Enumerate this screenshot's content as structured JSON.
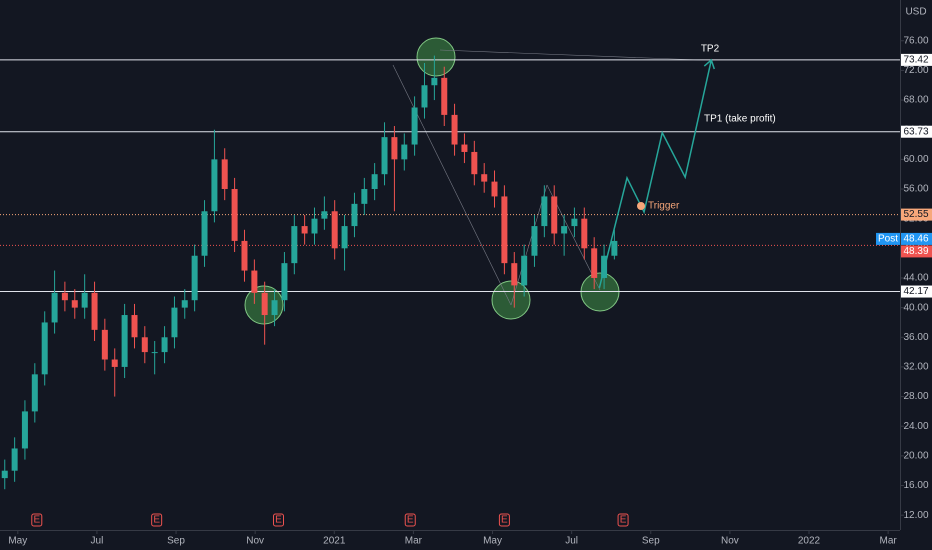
{
  "chart_data": {
    "type": "candlestick",
    "currency": "USD",
    "x": [
      -0.33,
      -0.08,
      0.18,
      0.43,
      0.68,
      0.93,
      1.19,
      1.44,
      1.69,
      1.94,
      2.2,
      2.45,
      2.7,
      2.95,
      3.21,
      3.46,
      3.71,
      3.96,
      4.22,
      4.47,
      4.72,
      4.97,
      5.23,
      5.48,
      5.73,
      5.98,
      6.24,
      6.49,
      6.74,
      6.99,
      7.25,
      7.5,
      7.75,
      8.01,
      8.26,
      8.51,
      8.76,
      9.02,
      9.27,
      9.52,
      9.77,
      10.03,
      10.28,
      10.53,
      10.78,
      11.04,
      11.29,
      11.54,
      11.79,
      12.05,
      12.3,
      12.55,
      12.8,
      13.06,
      13.31,
      13.56,
      13.81,
      14.07,
      14.32,
      14.57,
      14.82,
      15.08
    ],
    "open": [
      17,
      18,
      21,
      26,
      31,
      38,
      42,
      41,
      40,
      42,
      37,
      33,
      32,
      39,
      36,
      34,
      34,
      36,
      40,
      41,
      47,
      53,
      60,
      56,
      49,
      45,
      42,
      39,
      41,
      46,
      51,
      50,
      52,
      53,
      48,
      51,
      54,
      56,
      58,
      63,
      60,
      62,
      67,
      70,
      71,
      66,
      62,
      61,
      58,
      57,
      55,
      46,
      43,
      47,
      51,
      55,
      50,
      51,
      52,
      48,
      44,
      47
    ],
    "high": [
      19.5,
      22.5,
      27.5,
      32.5,
      39.5,
      45,
      43.5,
      42.5,
      44.5,
      43.5,
      38.5,
      34.5,
      40.5,
      40.5,
      37.5,
      35.5,
      37.5,
      41.5,
      42.5,
      48.5,
      54.5,
      64,
      61.5,
      57.5,
      50.5,
      46.5,
      43.5,
      42.5,
      47.5,
      52.5,
      52.5,
      53.5,
      55,
      54.5,
      52.5,
      55.5,
      57.5,
      59.5,
      65,
      64.5,
      63.5,
      68.5,
      73,
      74,
      72.5,
      67.5,
      63.5,
      62.5,
      59.5,
      58.5,
      56.5,
      47.5,
      48.5,
      52.5,
      56.5,
      56.5,
      52.5,
      53.5,
      53.5,
      49.5,
      48.5,
      50.5
    ],
    "low": [
      15.5,
      16.5,
      19.5,
      24.5,
      29.5,
      36.5,
      39.5,
      38.5,
      38.5,
      35.5,
      31.5,
      28,
      30.5,
      34.5,
      32.5,
      31,
      32.5,
      34.5,
      38.5,
      39.5,
      45.5,
      51.5,
      54.5,
      47.5,
      43.5,
      40.5,
      35,
      37.5,
      39.5,
      44.5,
      48.5,
      48.5,
      50.5,
      46.5,
      45,
      49.5,
      52.5,
      54.5,
      56.5,
      53,
      58.5,
      60.5,
      65.5,
      68,
      64.5,
      60.5,
      59.5,
      56.5,
      55.5,
      53.5,
      44.5,
      40,
      41.5,
      45.5,
      49.5,
      48.5,
      47,
      49.5,
      46.5,
      42.5,
      42.5,
      46.5
    ],
    "close": [
      18,
      21,
      26,
      31,
      38,
      42,
      41,
      40,
      42,
      37,
      33,
      32,
      39,
      36,
      34,
      34,
      36,
      40,
      41,
      47,
      53,
      60,
      56,
      49,
      45,
      42,
      39,
      41,
      46,
      51,
      50,
      52,
      53,
      48,
      51,
      54,
      56,
      58,
      63,
      60,
      62,
      67,
      70,
      71,
      66,
      62,
      61,
      58,
      57,
      55,
      46,
      43,
      47,
      51,
      55,
      50,
      51,
      52,
      48,
      44,
      47,
      49
    ],
    "up_color": "#26a69a",
    "down_color": "#ef5350",
    "xlim": [
      -0.45,
      22.3
    ],
    "xticks": [
      {
        "value": 0,
        "label": "May"
      },
      {
        "value": 2,
        "label": "Jul"
      },
      {
        "value": 4,
        "label": "Sep"
      },
      {
        "value": 6,
        "label": "Nov"
      },
      {
        "value": 8,
        "label": "2021"
      },
      {
        "value": 10,
        "label": "Mar"
      },
      {
        "value": 12,
        "label": "May"
      },
      {
        "value": 14,
        "label": "Jul"
      },
      {
        "value": 16,
        "label": "Sep"
      },
      {
        "value": 18,
        "label": "Nov"
      },
      {
        "value": 20,
        "label": "2022"
      },
      {
        "value": 22,
        "label": "Mar"
      }
    ],
    "ylim": [
      10,
      81.5
    ],
    "yticks": [
      {
        "value": 12,
        "label": "12.00"
      },
      {
        "value": 16,
        "label": "16.00"
      },
      {
        "value": 20,
        "label": "20.00"
      },
      {
        "value": 24,
        "label": "24.00"
      },
      {
        "value": 28,
        "label": "28.00"
      },
      {
        "value": 32,
        "label": "32.00"
      },
      {
        "value": 36,
        "label": "36.00"
      },
      {
        "value": 40,
        "label": "40.00"
      },
      {
        "value": 44,
        "label": "44.00"
      },
      {
        "value": 48,
        "label": "48.00"
      },
      {
        "value": 52,
        "label": "52.00"
      },
      {
        "value": 56,
        "label": "56.00"
      },
      {
        "value": 60,
        "label": "60.00"
      },
      {
        "value": 64,
        "label": "64.00"
      },
      {
        "value": 68,
        "label": "68.00"
      },
      {
        "value": 72,
        "label": "72.00"
      },
      {
        "value": 76,
        "label": "76.00"
      }
    ],
    "levels": [
      73.42,
      63.73,
      42.17
    ],
    "trigger_level": 52.55,
    "last_price": 48.39,
    "post_market": {
      "label": "Post",
      "value": 48.46
    },
    "annotations": {
      "tp2": "TP2",
      "tp1": "TP1 (take profit)",
      "trigger": "Trigger"
    },
    "projection": {
      "color": "#26a69a",
      "x": [
        14.7,
        15.4,
        15.83,
        16.29,
        16.87,
        17.53
      ],
      "y": [
        42.65,
        57.5,
        52.9,
        63.6,
        57.6,
        73.4
      ]
    },
    "earnings": {
      "label": "E",
      "x": [
        0.48,
        3.51,
        6.59,
        9.92,
        12.3,
        15.3
      ]
    }
  }
}
